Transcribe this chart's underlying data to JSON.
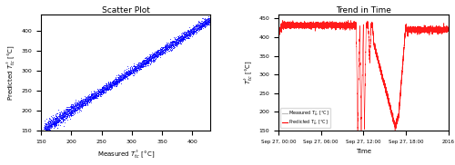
{
  "title_scatter": "Scatter Plot",
  "title_trend": "Trend in Time",
  "scatter_xlabel": "Measured $T^{\\circ}_{tc}$ [\\textdegree C]",
  "scatter_ylabel": "Predicted $T^{\\circ}_{tc}$ [\\textdegree C]",
  "trend_ylabel": "$T^{\\circ}_{tc}$ [\\textdegree C]",
  "trend_xlabel": "Time",
  "scatter_xlim": [
    150,
    430
  ],
  "scatter_ylim": [
    150,
    440
  ],
  "scatter_xticks": [
    150,
    200,
    250,
    300,
    350,
    400
  ],
  "scatter_yticks": [
    150,
    200,
    250,
    300,
    350,
    400
  ],
  "trend_ylim": [
    150,
    460
  ],
  "trend_yticks": [
    150,
    200,
    250,
    300,
    350,
    400,
    450
  ],
  "scatter_color": "#0000FF",
  "trend_color": "#FF0000",
  "legend_measured": "Measured $T^{\\circ}_{tc}$ [\\textdegree C]",
  "legend_predicted": "Predicted $T^{\\circ}_{tc}$ [\\textdegree C]",
  "time_tick_hours": [
    0,
    6,
    12,
    18,
    24
  ],
  "time_labels": [
    "Sep 27, 00:00",
    "Sep 27, 06:00",
    "Sep 27, 12:00",
    "Sep 27, 18:00",
    "2016"
  ],
  "seed": 42,
  "n_scatter": 4000,
  "n_trend": 8000
}
